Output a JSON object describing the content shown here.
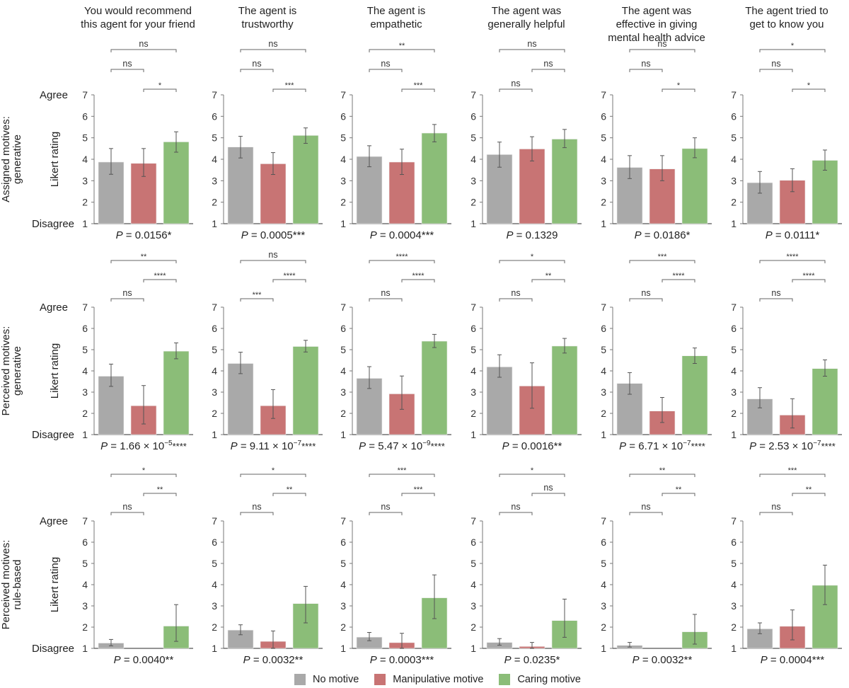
{
  "figure": {
    "row_labels": [
      [
        "Assigned motives:",
        "generative"
      ],
      [
        "Perceived motives:",
        "generative"
      ],
      [
        "Perceived motives:",
        "rule-based"
      ]
    ],
    "y_axis_label": "Likert rating",
    "agree_label": "Agree",
    "disagree_label": "Disagree",
    "column_titles": [
      [
        "You would recommend",
        "this agent for your friend"
      ],
      [
        "The agent is",
        "trustworthy"
      ],
      [
        "The agent is",
        "empathetic"
      ],
      [
        "The agent was",
        "generally helpful"
      ],
      [
        "The agent was",
        "effective in giving",
        "mental health advice"
      ],
      [
        "The agent tried to",
        "get to know you"
      ]
    ],
    "legend": [
      {
        "label": "No motive",
        "color": "#a9a9a9"
      },
      {
        "label": "Manipulative motive",
        "color": "#c87474"
      },
      {
        "label": "Caring motive",
        "color": "#8bbd78"
      }
    ]
  },
  "chart_data": {
    "type": "bar",
    "categories": [
      "No motive",
      "Manipulative motive",
      "Caring motive"
    ],
    "ylim": [
      1,
      7
    ],
    "yticks": [
      1,
      2,
      3,
      4,
      5,
      6,
      7
    ],
    "ylabel": "Likert rating",
    "legend_position": "bottom",
    "panels": [
      {
        "row": 0,
        "col": 0,
        "values": [
          3.87,
          3.81,
          4.81
        ],
        "err_low": [
          3.3,
          3.2,
          4.33
        ],
        "err_high": [
          4.5,
          4.5,
          5.28
        ],
        "p_text": "P = 0.0156*",
        "p_main": "0.0156",
        "p_exp": "",
        "p_stars": "*",
        "brackets": [
          {
            "a": 0,
            "b": 2,
            "label": "ns"
          },
          {
            "a": 0,
            "b": 1,
            "label": "ns"
          },
          {
            "a": 1,
            "b": 2,
            "label": "*"
          }
        ]
      },
      {
        "row": 0,
        "col": 1,
        "values": [
          4.57,
          3.79,
          5.11
        ],
        "err_low": [
          4.06,
          3.29,
          4.74
        ],
        "err_high": [
          5.07,
          4.31,
          5.46
        ],
        "p_text": "P = 0.0005***",
        "p_main": "0.0005",
        "p_exp": "",
        "p_stars": "***",
        "brackets": [
          {
            "a": 0,
            "b": 2,
            "label": "ns"
          },
          {
            "a": 0,
            "b": 1,
            "label": "ns"
          },
          {
            "a": 1,
            "b": 2,
            "label": "***"
          }
        ]
      },
      {
        "row": 0,
        "col": 2,
        "values": [
          4.13,
          3.87,
          5.22
        ],
        "err_low": [
          3.65,
          3.29,
          4.81
        ],
        "err_high": [
          4.63,
          4.47,
          5.62
        ],
        "p_text": "P = 0.0004***",
        "p_main": "0.0004",
        "p_exp": "",
        "p_stars": "***",
        "brackets": [
          {
            "a": 0,
            "b": 2,
            "label": "**"
          },
          {
            "a": 0,
            "b": 1,
            "label": "ns"
          },
          {
            "a": 1,
            "b": 2,
            "label": "***"
          }
        ]
      },
      {
        "row": 0,
        "col": 3,
        "values": [
          4.22,
          4.48,
          4.94
        ],
        "err_low": [
          3.63,
          3.92,
          4.54
        ],
        "err_high": [
          4.8,
          5.05,
          5.39
        ],
        "p_text": "P = 0.1329",
        "p_main": "0.1329",
        "p_exp": "",
        "p_stars": "",
        "brackets": [
          {
            "a": 0,
            "b": 2,
            "label": "ns"
          },
          {
            "a": 1,
            "b": 2,
            "label": "ns"
          },
          {
            "a": 0,
            "b": 1,
            "label": "ns"
          }
        ]
      },
      {
        "row": 0,
        "col": 4,
        "values": [
          3.62,
          3.55,
          4.5
        ],
        "err_low": [
          3.1,
          3.0,
          4.07
        ],
        "err_high": [
          4.17,
          4.17,
          5.0
        ],
        "p_text": "P = 0.0186*",
        "p_main": "0.0186",
        "p_exp": "",
        "p_stars": "*",
        "brackets": [
          {
            "a": 0,
            "b": 2,
            "label": "ns"
          },
          {
            "a": 0,
            "b": 1,
            "label": "ns"
          },
          {
            "a": 1,
            "b": 2,
            "label": "*"
          }
        ]
      },
      {
        "row": 0,
        "col": 5,
        "values": [
          2.91,
          3.02,
          3.95
        ],
        "err_low": [
          2.42,
          2.49,
          3.49
        ],
        "err_high": [
          3.43,
          3.56,
          4.43
        ],
        "p_text": "P = 0.0111*",
        "p_main": "0.0111",
        "p_exp": "",
        "p_stars": "*",
        "brackets": [
          {
            "a": 0,
            "b": 2,
            "label": "*"
          },
          {
            "a": 0,
            "b": 1,
            "label": "ns"
          },
          {
            "a": 1,
            "b": 2,
            "label": "*"
          }
        ]
      },
      {
        "row": 1,
        "col": 0,
        "values": [
          3.75,
          2.36,
          4.93
        ],
        "err_low": [
          3.27,
          1.5,
          4.57
        ],
        "err_high": [
          4.32,
          3.31,
          5.32
        ],
        "p_text": "P = 1.66 × 10^-5****",
        "p_main": "1.66 × 10",
        "p_exp": "−5",
        "p_stars": "****",
        "brackets": [
          {
            "a": 0,
            "b": 2,
            "label": "**"
          },
          {
            "a": 1,
            "b": 2,
            "label": "****"
          },
          {
            "a": 0,
            "b": 1,
            "label": "ns"
          }
        ]
      },
      {
        "row": 1,
        "col": 1,
        "values": [
          4.35,
          2.36,
          5.15
        ],
        "err_low": [
          3.87,
          1.76,
          4.89
        ],
        "err_high": [
          4.88,
          3.12,
          5.44
        ],
        "p_text": "P = 9.11 × 10^-7****",
        "p_main": "9.11 × 10",
        "p_exp": "−7",
        "p_stars": "****",
        "brackets": [
          {
            "a": 0,
            "b": 2,
            "label": "ns"
          },
          {
            "a": 1,
            "b": 2,
            "label": "****"
          },
          {
            "a": 0,
            "b": 1,
            "label": "***"
          }
        ]
      },
      {
        "row": 1,
        "col": 2,
        "values": [
          3.65,
          2.92,
          5.4
        ],
        "err_low": [
          3.17,
          2.19,
          5.1
        ],
        "err_high": [
          4.2,
          3.76,
          5.72
        ],
        "p_text": "P = 5.47 × 10^-9****",
        "p_main": "5.47 × 10",
        "p_exp": "−9",
        "p_stars": "****",
        "brackets": [
          {
            "a": 0,
            "b": 2,
            "label": "****"
          },
          {
            "a": 1,
            "b": 2,
            "label": "****"
          },
          {
            "a": 0,
            "b": 1,
            "label": "ns"
          }
        ]
      },
      {
        "row": 1,
        "col": 3,
        "values": [
          4.19,
          3.29,
          5.17
        ],
        "err_low": [
          3.7,
          2.24,
          4.84
        ],
        "err_high": [
          4.76,
          4.38,
          5.53
        ],
        "p_text": "P = 0.0016**",
        "p_main": "0.0016",
        "p_exp": "",
        "p_stars": "**",
        "brackets": [
          {
            "a": 0,
            "b": 2,
            "label": "*"
          },
          {
            "a": 1,
            "b": 2,
            "label": "**"
          },
          {
            "a": 0,
            "b": 1,
            "label": "ns"
          }
        ]
      },
      {
        "row": 1,
        "col": 4,
        "values": [
          3.41,
          2.11,
          4.71
        ],
        "err_low": [
          2.9,
          1.57,
          4.35
        ],
        "err_high": [
          3.92,
          2.75,
          5.08
        ],
        "p_text": "P = 6.71 × 10^-7****",
        "p_main": "6.71 × 10",
        "p_exp": "−7",
        "p_stars": "****",
        "brackets": [
          {
            "a": 0,
            "b": 2,
            "label": "***"
          },
          {
            "a": 1,
            "b": 2,
            "label": "****"
          },
          {
            "a": 0,
            "b": 1,
            "label": "ns"
          }
        ]
      },
      {
        "row": 1,
        "col": 5,
        "values": [
          2.68,
          1.92,
          4.11
        ],
        "err_low": [
          2.26,
          1.31,
          3.75
        ],
        "err_high": [
          3.21,
          2.69,
          4.52
        ],
        "p_text": "P = 2.53 × 10^-7****",
        "p_main": "2.53 × 10",
        "p_exp": "−7",
        "p_stars": "****",
        "brackets": [
          {
            "a": 0,
            "b": 2,
            "label": "****"
          },
          {
            "a": 1,
            "b": 2,
            "label": "****"
          },
          {
            "a": 0,
            "b": 1,
            "label": "ns"
          }
        ]
      },
      {
        "row": 2,
        "col": 0,
        "values": [
          1.25,
          1.0,
          2.05
        ],
        "err_low": [
          1.12,
          1.0,
          1.33
        ],
        "err_high": [
          1.42,
          1.0,
          3.06
        ],
        "p_text": "P = 0.0040**",
        "p_main": "0.0040",
        "p_exp": "",
        "p_stars": "**",
        "brackets": [
          {
            "a": 0,
            "b": 2,
            "label": "*"
          },
          {
            "a": 1,
            "b": 2,
            "label": "**"
          },
          {
            "a": 0,
            "b": 1,
            "label": "ns"
          }
        ]
      },
      {
        "row": 2,
        "col": 1,
        "values": [
          1.86,
          1.33,
          3.11
        ],
        "err_low": [
          1.64,
          1.0,
          2.2
        ],
        "err_high": [
          2.11,
          1.82,
          3.92
        ],
        "p_text": "P = 0.0032**",
        "p_main": "0.0032",
        "p_exp": "",
        "p_stars": "**",
        "brackets": [
          {
            "a": 0,
            "b": 2,
            "label": "*"
          },
          {
            "a": 1,
            "b": 2,
            "label": "**"
          },
          {
            "a": 0,
            "b": 1,
            "label": "ns"
          }
        ]
      },
      {
        "row": 2,
        "col": 2,
        "values": [
          1.53,
          1.27,
          3.38
        ],
        "err_low": [
          1.36,
          1.0,
          2.4
        ],
        "err_high": [
          1.75,
          1.71,
          4.46
        ],
        "p_text": "P = 0.0003***",
        "p_main": "0.0003",
        "p_exp": "",
        "p_stars": "***",
        "brackets": [
          {
            "a": 0,
            "b": 2,
            "label": "***"
          },
          {
            "a": 1,
            "b": 2,
            "label": "***"
          },
          {
            "a": 0,
            "b": 1,
            "label": "ns"
          }
        ]
      },
      {
        "row": 2,
        "col": 3,
        "values": [
          1.28,
          1.09,
          2.31
        ],
        "err_low": [
          1.15,
          1.0,
          1.52
        ],
        "err_high": [
          1.46,
          1.28,
          3.32
        ],
        "p_text": "P = 0.0235*",
        "p_main": "0.0235",
        "p_exp": "",
        "p_stars": "*",
        "brackets": [
          {
            "a": 0,
            "b": 2,
            "label": "*"
          },
          {
            "a": 1,
            "b": 2,
            "label": "ns"
          },
          {
            "a": 0,
            "b": 1,
            "label": "ns"
          }
        ]
      },
      {
        "row": 2,
        "col": 4,
        "values": [
          1.14,
          1.0,
          1.78
        ],
        "err_low": [
          1.06,
          1.0,
          1.2
        ],
        "err_high": [
          1.28,
          1.0,
          2.6
        ],
        "p_text": "P = 0.0032**",
        "p_main": "0.0032",
        "p_exp": "",
        "p_stars": "**",
        "brackets": [
          {
            "a": 0,
            "b": 2,
            "label": "**"
          },
          {
            "a": 1,
            "b": 2,
            "label": "**"
          },
          {
            "a": 0,
            "b": 1,
            "label": "ns"
          }
        ]
      },
      {
        "row": 2,
        "col": 5,
        "values": [
          1.92,
          2.04,
          3.97
        ],
        "err_low": [
          1.69,
          1.4,
          3.06
        ],
        "err_high": [
          2.2,
          2.81,
          4.92
        ],
        "p_text": "P = 0.0004***",
        "p_main": "0.0004",
        "p_exp": "",
        "p_stars": "***",
        "brackets": [
          {
            "a": 0,
            "b": 2,
            "label": "***"
          },
          {
            "a": 1,
            "b": 2,
            "label": "**"
          },
          {
            "a": 0,
            "b": 1,
            "label": "ns"
          }
        ]
      }
    ]
  }
}
